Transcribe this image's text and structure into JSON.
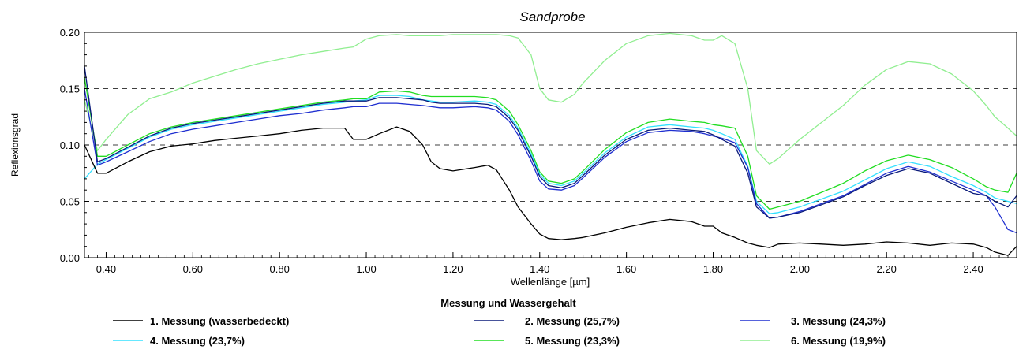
{
  "chart_data": {
    "type": "line",
    "title": "Sandprobe",
    "xlabel": "Wellenlänge [µm]",
    "ylabel": "Reflexionsgrad",
    "xlim": [
      0.35,
      2.5
    ],
    "ylim": [
      0.0,
      0.2
    ],
    "x_ticks": [
      0.4,
      0.6,
      0.8,
      1.0,
      1.2,
      1.4,
      1.6,
      1.8,
      2.0,
      2.2,
      2.4
    ],
    "x_tick_labels": [
      "0.40",
      "0.60",
      "0.80",
      "1.00",
      "1.20",
      "1.40",
      "1.60",
      "1.80",
      "2.00",
      "2.20",
      "2.40"
    ],
    "y_ticks": [
      0.0,
      0.05,
      0.1,
      0.15,
      0.2
    ],
    "y_tick_labels": [
      "0.00",
      "0.05",
      "0.10",
      "0.15",
      "0.20"
    ],
    "grid": "horizontal dashed",
    "legend_title": "Messung und Wassergehalt",
    "legend_position": "bottom",
    "x": [
      0.35,
      0.38,
      0.4,
      0.45,
      0.5,
      0.55,
      0.6,
      0.65,
      0.7,
      0.75,
      0.8,
      0.85,
      0.9,
      0.95,
      0.97,
      1.0,
      1.03,
      1.07,
      1.1,
      1.13,
      1.15,
      1.17,
      1.2,
      1.25,
      1.28,
      1.3,
      1.33,
      1.35,
      1.38,
      1.4,
      1.42,
      1.45,
      1.48,
      1.5,
      1.55,
      1.6,
      1.65,
      1.7,
      1.75,
      1.78,
      1.8,
      1.82,
      1.85,
      1.88,
      1.9,
      1.93,
      1.95,
      2.0,
      2.05,
      2.1,
      2.15,
      2.2,
      2.25,
      2.3,
      2.35,
      2.4,
      2.43,
      2.45,
      2.48,
      2.5
    ],
    "series": [
      {
        "name": "1. Messung (wasserbedeckt)",
        "color": "#000000",
        "values": [
          0.1,
          0.075,
          0.075,
          0.085,
          0.094,
          0.099,
          0.101,
          0.104,
          0.106,
          0.108,
          0.11,
          0.113,
          0.115,
          0.115,
          0.105,
          0.105,
          0.11,
          0.116,
          0.112,
          0.1,
          0.085,
          0.079,
          0.077,
          0.08,
          0.082,
          0.078,
          0.06,
          0.045,
          0.03,
          0.021,
          0.017,
          0.016,
          0.017,
          0.018,
          0.022,
          0.027,
          0.031,
          0.034,
          0.032,
          0.028,
          0.028,
          0.022,
          0.018,
          0.013,
          0.011,
          0.009,
          0.012,
          0.013,
          0.012,
          0.011,
          0.012,
          0.014,
          0.013,
          0.011,
          0.013,
          0.012,
          0.009,
          0.005,
          0.002,
          0.01
        ]
      },
      {
        "name": "2. Messung (25,7%)",
        "color": "#0a1a7a",
        "values": [
          0.17,
          0.085,
          0.088,
          0.098,
          0.108,
          0.115,
          0.119,
          0.122,
          0.125,
          0.128,
          0.131,
          0.134,
          0.137,
          0.139,
          0.139,
          0.139,
          0.142,
          0.142,
          0.141,
          0.14,
          0.138,
          0.137,
          0.137,
          0.137,
          0.136,
          0.134,
          0.124,
          0.113,
          0.09,
          0.072,
          0.064,
          0.062,
          0.066,
          0.073,
          0.091,
          0.105,
          0.113,
          0.115,
          0.113,
          0.112,
          0.109,
          0.105,
          0.099,
          0.075,
          0.045,
          0.035,
          0.036,
          0.04,
          0.047,
          0.054,
          0.064,
          0.073,
          0.079,
          0.075,
          0.066,
          0.057,
          0.055,
          0.05,
          0.045,
          0.055
        ]
      },
      {
        "name": "3. Messung (24,3%)",
        "color": "#1f2fd0",
        "values": [
          0.15,
          0.082,
          0.085,
          0.094,
          0.103,
          0.11,
          0.114,
          0.117,
          0.12,
          0.123,
          0.126,
          0.128,
          0.131,
          0.133,
          0.134,
          0.134,
          0.137,
          0.137,
          0.136,
          0.135,
          0.134,
          0.133,
          0.133,
          0.134,
          0.133,
          0.131,
          0.121,
          0.109,
          0.086,
          0.068,
          0.061,
          0.06,
          0.064,
          0.071,
          0.089,
          0.103,
          0.111,
          0.113,
          0.112,
          0.11,
          0.108,
          0.106,
          0.102,
          0.08,
          0.048,
          0.035,
          0.036,
          0.041,
          0.048,
          0.055,
          0.065,
          0.075,
          0.081,
          0.076,
          0.068,
          0.06,
          0.055,
          0.045,
          0.025,
          0.022
        ]
      },
      {
        "name": "4. Messung (23,7%)",
        "color": "#33e0ff",
        "values": [
          0.07,
          0.083,
          0.087,
          0.097,
          0.107,
          0.114,
          0.118,
          0.121,
          0.124,
          0.127,
          0.13,
          0.133,
          0.136,
          0.138,
          0.139,
          0.14,
          0.144,
          0.144,
          0.143,
          0.14,
          0.139,
          0.138,
          0.138,
          0.139,
          0.138,
          0.136,
          0.126,
          0.115,
          0.092,
          0.074,
          0.066,
          0.064,
          0.068,
          0.075,
          0.093,
          0.107,
          0.116,
          0.118,
          0.116,
          0.115,
          0.113,
          0.11,
          0.105,
          0.081,
          0.05,
          0.039,
          0.04,
          0.045,
          0.052,
          0.059,
          0.069,
          0.079,
          0.085,
          0.081,
          0.072,
          0.064,
          0.058,
          0.053,
          0.05,
          0.048
        ]
      },
      {
        "name": "5. Messung (23,3%)",
        "color": "#22dd22",
        "values": [
          0.16,
          0.09,
          0.09,
          0.1,
          0.11,
          0.116,
          0.12,
          0.123,
          0.126,
          0.129,
          0.132,
          0.135,
          0.138,
          0.14,
          0.141,
          0.141,
          0.147,
          0.148,
          0.147,
          0.144,
          0.143,
          0.143,
          0.143,
          0.143,
          0.142,
          0.14,
          0.13,
          0.118,
          0.095,
          0.076,
          0.068,
          0.066,
          0.07,
          0.077,
          0.096,
          0.111,
          0.12,
          0.123,
          0.121,
          0.12,
          0.118,
          0.117,
          0.115,
          0.09,
          0.055,
          0.043,
          0.045,
          0.05,
          0.058,
          0.066,
          0.077,
          0.086,
          0.091,
          0.087,
          0.08,
          0.07,
          0.063,
          0.06,
          0.058,
          0.075
        ]
      },
      {
        "name": "6. Messung (19,9%)",
        "color": "#90ee90",
        "values": [
          0.14,
          0.095,
          0.105,
          0.127,
          0.141,
          0.147,
          0.155,
          0.161,
          0.167,
          0.172,
          0.176,
          0.18,
          0.183,
          0.186,
          0.187,
          0.194,
          0.197,
          0.198,
          0.197,
          0.197,
          0.197,
          0.197,
          0.198,
          0.198,
          0.198,
          0.198,
          0.197,
          0.195,
          0.18,
          0.15,
          0.14,
          0.138,
          0.145,
          0.155,
          0.175,
          0.19,
          0.197,
          0.199,
          0.197,
          0.193,
          0.193,
          0.197,
          0.19,
          0.15,
          0.095,
          0.083,
          0.088,
          0.105,
          0.12,
          0.135,
          0.153,
          0.167,
          0.174,
          0.172,
          0.163,
          0.148,
          0.135,
          0.125,
          0.115,
          0.108
        ]
      }
    ]
  }
}
